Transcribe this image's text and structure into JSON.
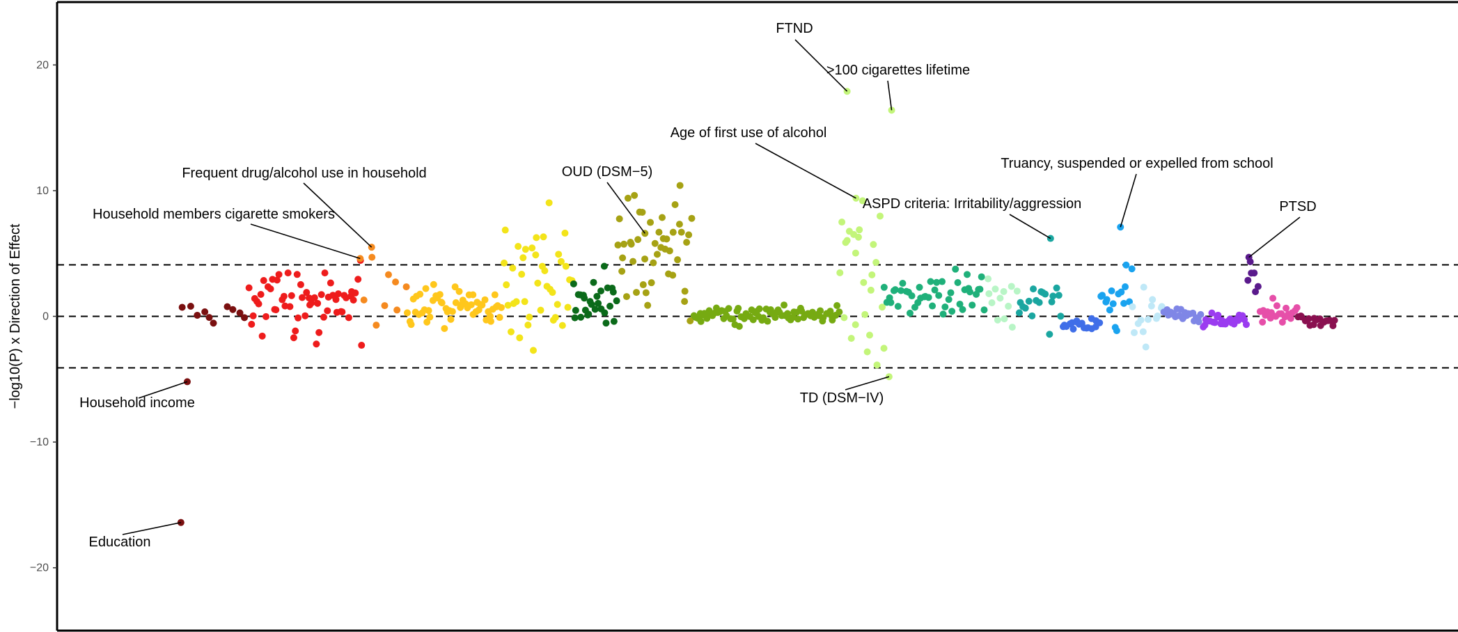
{
  "chart_data": {
    "type": "scatter",
    "title": "",
    "xlabel": "",
    "ylabel": "−log10(P) x Direction of Effect",
    "ylim": [
      -25,
      25
    ],
    "xlim": [
      0,
      1000
    ],
    "y_ticks": [
      20,
      10,
      0,
      -10,
      -20
    ],
    "y_tick_labels": [
      "20",
      "10",
      "0",
      "−10",
      "−20"
    ],
    "reference_lines": [
      {
        "y": 4.1,
        "style": "dashed"
      },
      {
        "y": 0,
        "style": "dashed"
      },
      {
        "y": -4.1,
        "style": "dashed"
      }
    ],
    "grid": false,
    "legend": "none",
    "groups": [
      {
        "color": "#7a1010",
        "x_range": [
          45,
          100
        ],
        "seed": 1,
        "n": 10,
        "y_mean": 0.3,
        "y_sd": 0.3
      },
      {
        "color": "#ee1c1c",
        "x_range": [
          100,
          190
        ],
        "seed": 2,
        "n": 60,
        "y_mean": 1.2,
        "y_sd": 1.1
      },
      {
        "color": "#f58a1f",
        "x_range": [
          190,
          225
        ],
        "seed": 3,
        "n": 8,
        "y_mean": 1.8,
        "y_sd": 1.8
      },
      {
        "color": "#ffc71c",
        "x_range": [
          225,
          300
        ],
        "seed": 4,
        "n": 55,
        "y_mean": 0.8,
        "y_sd": 0.8
      },
      {
        "color": "#f3e41a",
        "x_range": [
          300,
          355
        ],
        "seed": 5,
        "n": 40,
        "y_mean": 3.0,
        "y_sd": 2.8
      },
      {
        "color": "#0b6a1a",
        "x_range": [
          355,
          390
        ],
        "seed": 6,
        "n": 28,
        "y_mean": 1.1,
        "y_sd": 1.0
      },
      {
        "color": "#a6a214",
        "x_range": [
          390,
          450
        ],
        "seed": 7,
        "n": 45,
        "y_mean": 5.5,
        "y_sd": 2.2
      },
      {
        "color": "#76aa12",
        "x_range": [
          450,
          565
        ],
        "seed": 8,
        "n": 80,
        "y_mean": 0.2,
        "y_sd": 0.35
      },
      {
        "color": "#c3f57a",
        "x_range": [
          565,
          600
        ],
        "seed": 9,
        "n": 25,
        "y_mean": 5.0,
        "y_sd": 4.0
      },
      {
        "color": "#1fb07a",
        "x_range": [
          600,
          680
        ],
        "seed": 10,
        "n": 45,
        "y_mean": 1.5,
        "y_sd": 0.9
      },
      {
        "color": "#b8f5c6",
        "x_range": [
          680,
          705
        ],
        "seed": 11,
        "n": 12,
        "y_mean": 1.5,
        "y_sd": 1.2
      },
      {
        "color": "#1aa6a0",
        "x_range": [
          705,
          740
        ],
        "seed": 12,
        "n": 18,
        "y_mean": 1.2,
        "y_sd": 1.0
      },
      {
        "color": "#3f6ee8",
        "x_range": [
          740,
          770
        ],
        "seed": 13,
        "n": 18,
        "y_mean": -0.7,
        "y_sd": 0.25
      },
      {
        "color": "#1aa3ef",
        "x_range": [
          770,
          795
        ],
        "seed": 14,
        "n": 16,
        "y_mean": 1.6,
        "y_sd": 1.2
      },
      {
        "color": "#bfe8f7",
        "x_range": [
          795,
          820
        ],
        "seed": 15,
        "n": 14,
        "y_mean": -0.3,
        "y_sd": 0.9
      },
      {
        "color": "#7f86e6",
        "x_range": [
          820,
          850
        ],
        "seed": 16,
        "n": 22,
        "y_mean": 0.1,
        "y_sd": 0.35
      },
      {
        "color": "#9b3cf0",
        "x_range": [
          850,
          885
        ],
        "seed": 17,
        "n": 28,
        "y_mean": -0.3,
        "y_sd": 0.3
      },
      {
        "color": "#5a1a8c",
        "x_range": [
          885,
          895
        ],
        "seed": 18,
        "n": 6,
        "y_mean": 3.2,
        "y_sd": 0.8
      },
      {
        "color": "#e64fa9",
        "x_range": [
          895,
          925
        ],
        "seed": 19,
        "n": 20,
        "y_mean": 0.2,
        "y_sd": 0.45
      },
      {
        "color": "#8a1050",
        "x_range": [
          925,
          955
        ],
        "seed": 20,
        "n": 18,
        "y_mean": -0.4,
        "y_sd": 0.3
      }
    ],
    "highlighted_points": [
      {
        "label": "Education",
        "x": 47,
        "y": -16.4,
        "color": "#7a1010"
      },
      {
        "label": "Household income",
        "x": 52,
        "y": -5.2,
        "color": "#7a1010"
      },
      {
        "label": "Household members cigarette smokers",
        "x": 188,
        "y": 4.6,
        "color": "#f58a1f"
      },
      {
        "label": "Frequent drug/alcohol use in household",
        "x": 197,
        "y": 5.5,
        "color": "#f58a1f"
      },
      {
        "label": "OUD (DSM−5)",
        "x": 412,
        "y": 6.6,
        "color": "#a6a214"
      },
      {
        "label": "FTND",
        "x": 571,
        "y": 17.9,
        "color": "#c3f57a"
      },
      {
        "label": ">100 cigarettes lifetime",
        "x": 606,
        "y": 16.4,
        "color": "#c3f57a"
      },
      {
        "label": "Age of first use of alcohol",
        "x": 578,
        "y": 9.4,
        "color": "#c3f57a"
      },
      {
        "label": "TD (DSM−IV)",
        "x": 604,
        "y": -4.8,
        "color": "#c3f57a"
      },
      {
        "label": "ASPD criteria: Irritability/aggression",
        "x": 731,
        "y": 6.2,
        "color": "#1aa6a0"
      },
      {
        "label": "Truancy, suspended or expelled from school",
        "x": 786,
        "y": 7.1,
        "color": "#1aa3ef"
      },
      {
        "label": "PTSD",
        "x": 887,
        "y": 4.7,
        "color": "#5a1a8c"
      }
    ]
  }
}
